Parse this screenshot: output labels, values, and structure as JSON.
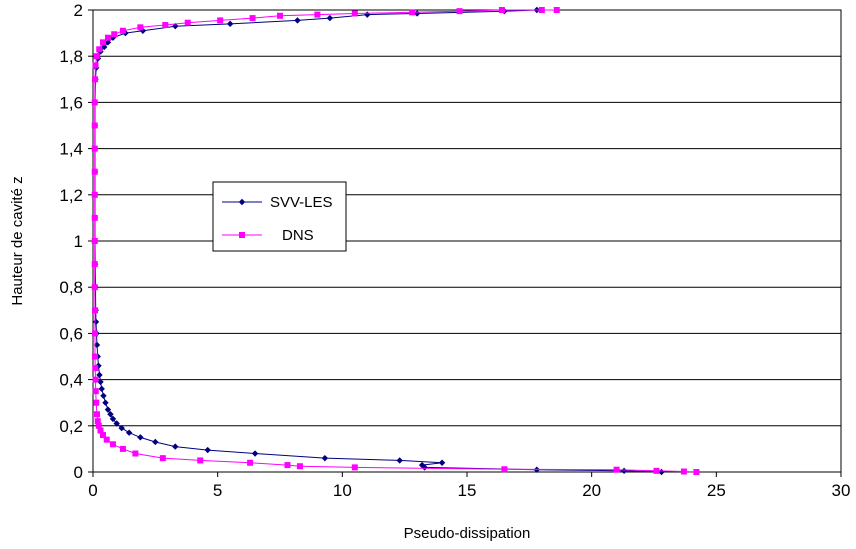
{
  "chart_data": {
    "type": "scatter",
    "xlabel": "Pseudo-dissipation",
    "ylabel": "Hauteur de cavité z",
    "xlim": [
      0,
      30
    ],
    "ylim": [
      0,
      2
    ],
    "x_ticks": [
      "0",
      "5",
      "10",
      "15",
      "20",
      "25",
      "30"
    ],
    "y_ticks": [
      "0",
      "0,2",
      "0,4",
      "0,6",
      "0,8",
      "1",
      "1,2",
      "1,4",
      "1,6",
      "1,8",
      "2"
    ],
    "grid": "horizontal",
    "legend_position": "center-left",
    "series": [
      {
        "name": "SVV-LES",
        "color": "#000080",
        "marker": "diamond",
        "points": [
          [
            22.8,
            0.0
          ],
          [
            21.3,
            0.005
          ],
          [
            17.8,
            0.01
          ],
          [
            13.3,
            0.02
          ],
          [
            13.2,
            0.03
          ],
          [
            14.0,
            0.04
          ],
          [
            12.3,
            0.05
          ],
          [
            9.3,
            0.06
          ],
          [
            6.5,
            0.08
          ],
          [
            4.6,
            0.095
          ],
          [
            3.3,
            0.11
          ],
          [
            2.5,
            0.13
          ],
          [
            1.9,
            0.15
          ],
          [
            1.45,
            0.17
          ],
          [
            1.15,
            0.19
          ],
          [
            0.95,
            0.21
          ],
          [
            0.8,
            0.23
          ],
          [
            0.7,
            0.25
          ],
          [
            0.6,
            0.27
          ],
          [
            0.5,
            0.3
          ],
          [
            0.42,
            0.33
          ],
          [
            0.35,
            0.36
          ],
          [
            0.3,
            0.39
          ],
          [
            0.26,
            0.42
          ],
          [
            0.22,
            0.46
          ],
          [
            0.19,
            0.5
          ],
          [
            0.16,
            0.55
          ],
          [
            0.14,
            0.6
          ],
          [
            0.12,
            0.65
          ],
          [
            0.11,
            0.7
          ],
          [
            0.1,
            0.8
          ],
          [
            0.09,
            0.9
          ],
          [
            0.08,
            1.0
          ],
          [
            0.08,
            1.1
          ],
          [
            0.08,
            1.2
          ],
          [
            0.08,
            1.3
          ],
          [
            0.08,
            1.4
          ],
          [
            0.08,
            1.5
          ],
          [
            0.08,
            1.6
          ],
          [
            0.1,
            1.7
          ],
          [
            0.13,
            1.75
          ],
          [
            0.2,
            1.79
          ],
          [
            0.3,
            1.82
          ],
          [
            0.45,
            1.84
          ],
          [
            0.6,
            1.86
          ],
          [
            0.8,
            1.88
          ],
          [
            1.3,
            1.9
          ],
          [
            2.0,
            1.91
          ],
          [
            3.3,
            1.93
          ],
          [
            5.5,
            1.94
          ],
          [
            8.2,
            1.955
          ],
          [
            9.5,
            1.965
          ],
          [
            11.0,
            1.98
          ],
          [
            13.0,
            1.985
          ],
          [
            16.5,
            1.995
          ],
          [
            17.8,
            2.0
          ]
        ]
      },
      {
        "name": "DNS",
        "color": "#ff00ff",
        "marker": "square",
        "points": [
          [
            24.2,
            0.0
          ],
          [
            23.7,
            0.002
          ],
          [
            22.6,
            0.005
          ],
          [
            21.0,
            0.01
          ],
          [
            16.5,
            0.012
          ],
          [
            10.5,
            0.02
          ],
          [
            8.3,
            0.025
          ],
          [
            7.8,
            0.03
          ],
          [
            6.3,
            0.04
          ],
          [
            4.3,
            0.05
          ],
          [
            2.8,
            0.06
          ],
          [
            1.7,
            0.08
          ],
          [
            1.2,
            0.1
          ],
          [
            0.8,
            0.12
          ],
          [
            0.55,
            0.14
          ],
          [
            0.4,
            0.16
          ],
          [
            0.3,
            0.18
          ],
          [
            0.23,
            0.2
          ],
          [
            0.19,
            0.22
          ],
          [
            0.16,
            0.25
          ],
          [
            0.13,
            0.3
          ],
          [
            0.11,
            0.35
          ],
          [
            0.1,
            0.4
          ],
          [
            0.09,
            0.45
          ],
          [
            0.08,
            0.5
          ],
          [
            0.08,
            0.6
          ],
          [
            0.08,
            0.7
          ],
          [
            0.07,
            0.8
          ],
          [
            0.07,
            0.9
          ],
          [
            0.07,
            1.0
          ],
          [
            0.07,
            1.1
          ],
          [
            0.07,
            1.2
          ],
          [
            0.07,
            1.3
          ],
          [
            0.07,
            1.4
          ],
          [
            0.07,
            1.5
          ],
          [
            0.07,
            1.6
          ],
          [
            0.08,
            1.7
          ],
          [
            0.1,
            1.76
          ],
          [
            0.15,
            1.8
          ],
          [
            0.25,
            1.83
          ],
          [
            0.4,
            1.86
          ],
          [
            0.6,
            1.88
          ],
          [
            0.85,
            1.895
          ],
          [
            1.2,
            1.91
          ],
          [
            1.9,
            1.925
          ],
          [
            2.9,
            1.935
          ],
          [
            3.8,
            1.945
          ],
          [
            5.1,
            1.955
          ],
          [
            6.4,
            1.965
          ],
          [
            7.5,
            1.975
          ],
          [
            9.0,
            1.98
          ],
          [
            10.5,
            1.985
          ],
          [
            12.8,
            1.99
          ],
          [
            14.7,
            1.995
          ],
          [
            16.4,
            2.0
          ],
          [
            18.0,
            2.0
          ],
          [
            18.6,
            2.0
          ]
        ]
      }
    ]
  }
}
